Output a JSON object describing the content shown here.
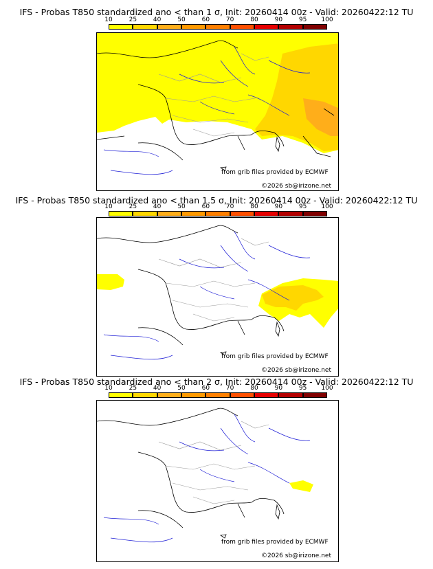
{
  "colorbar": {
    "labels": [
      "10",
      "25",
      "40",
      "50",
      "60",
      "70",
      "80",
      "90",
      "95",
      "100"
    ],
    "colors": [
      "#ffff00",
      "#ffd700",
      "#ffae1a",
      "#ff9900",
      "#ff7f00",
      "#ff4f00",
      "#e60000",
      "#b30000",
      "#800000"
    ]
  },
  "colors": {
    "land_line": "#000000",
    "river": "#1f1fd6",
    "border": "#9a9a9a",
    "prob_yellow": "#ffff00",
    "prob_gold": "#ffd700",
    "prob_orange": "#ffae1a"
  },
  "panels": [
    {
      "title": "IFS - Probas T850  standardized ano < than 1 σ, Init: 20260414 00z - Valid: 20260422:12 TU",
      "source": "from grib files provided by ECMWF",
      "copyright": "©2026 sb@irizone.net"
    },
    {
      "title": "IFS - Probas T850  standardized ano < than 1.5 σ, Init: 20260414 00z - Valid: 20260422:12 TU",
      "source": "from grib files provided by ECMWF",
      "copyright": "©2026 sb@irizone.net"
    },
    {
      "title": "IFS - Probas T850  standardized ano < than 2 σ, Init: 20260414 00z - Valid: 20260422:12 TU",
      "source": "from grib files provided by ECMWF",
      "copyright": "©2026 sb@irizone.net"
    }
  ]
}
